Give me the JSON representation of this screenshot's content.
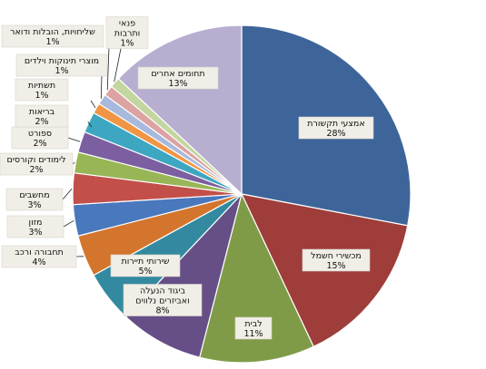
{
  "chart_data": {
    "type": "pie",
    "title": "",
    "start_angle_deg": 0,
    "direction": "clockwise",
    "legend": "none",
    "slices": [
      {
        "label": "אמצעי תקשורת",
        "value": 28,
        "display": "28%",
        "color": "#3e659a"
      },
      {
        "label": "מכשירי חשמל",
        "value": 15,
        "display": "15%",
        "color": "#9e3d3a"
      },
      {
        "label": "לבית",
        "value": 11,
        "display": "11%",
        "color": "#7f9b47"
      },
      {
        "label": "ביגוד הנעלה ואביזרים נלווים",
        "value": 8,
        "display": "8%",
        "color": "#664f86"
      },
      {
        "label": "שירותי תיירות",
        "value": 5,
        "display": "5%",
        "color": "#338aa0"
      },
      {
        "label": "תחבורה ורכב",
        "value": 4,
        "display": "4%",
        "color": "#d3752d"
      },
      {
        "label": "מזון",
        "value": 3,
        "display": "3%",
        "color": "#4a78bd"
      },
      {
        "label": "מחשבים",
        "value": 3,
        "display": "3%",
        "color": "#c34f4b"
      },
      {
        "label": "לימודים וקורסים",
        "value": 2,
        "display": "2%",
        "color": "#98b656"
      },
      {
        "label": "ספורט",
        "value": 2,
        "display": "2%",
        "color": "#7c5fa0"
      },
      {
        "label": "בריאות",
        "value": 2,
        "display": "2%",
        "color": "#3da7c2"
      },
      {
        "label": "תשתיות",
        "value": 1,
        "display": "1%",
        "color": "#f09546"
      },
      {
        "label": "מוצרי תינוקות וילדים",
        "value": 1,
        "display": "1%",
        "color": "#a7b9dc"
      },
      {
        "label": "שליחויות, הובלות ודואר",
        "value": 1,
        "display": "1%",
        "color": "#dca3a2"
      },
      {
        "label": "פנאי ותרבות",
        "value": 1,
        "display": "1%",
        "color": "#c3d69f"
      },
      {
        "label": "תחומים אחרים",
        "value": 13,
        "display": "13%",
        "color": "#b7aed0"
      }
    ]
  }
}
